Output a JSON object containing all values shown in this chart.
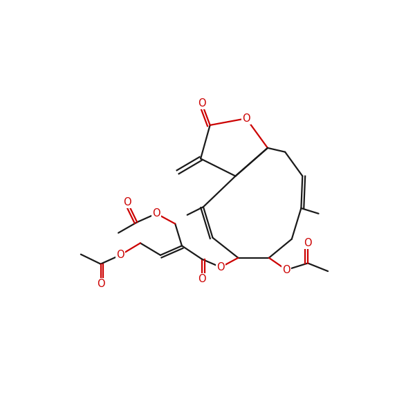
{
  "background": "#ffffff",
  "bond_color": "#1a1a1a",
  "heteroatom_color": "#cc0000",
  "lw": 1.6,
  "dg": 0.05,
  "figsize": [
    6.0,
    6.0
  ],
  "dpi": 100,
  "xlim": [
    -0.5,
    11.5
  ],
  "ylim": [
    -1.0,
    9.5
  ]
}
